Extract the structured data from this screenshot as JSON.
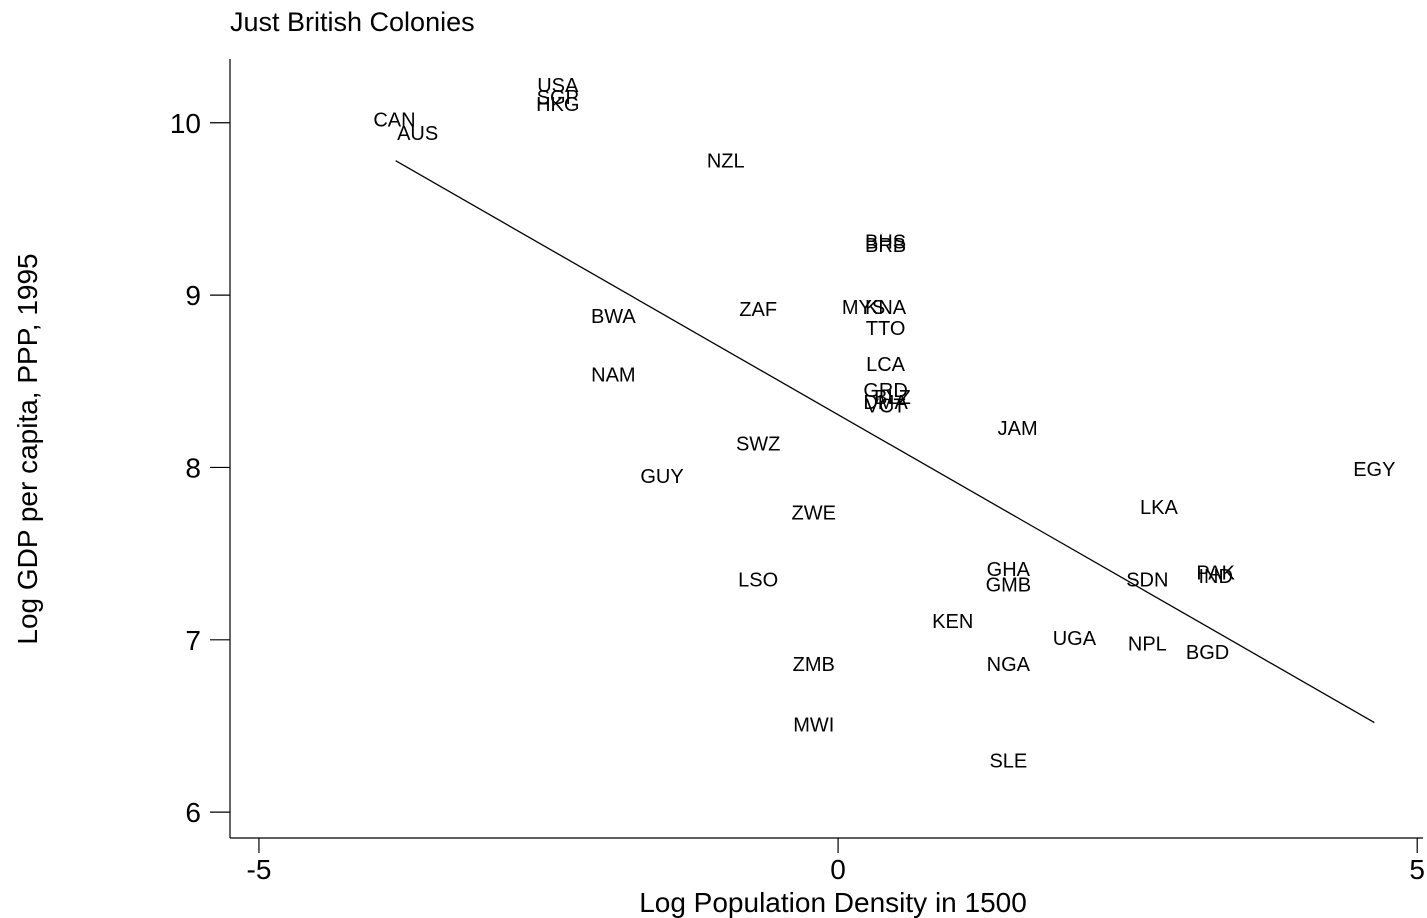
{
  "chart_data": {
    "type": "scatter",
    "title": "Just British Colonies",
    "xlabel": "Log Population Density in 1500",
    "ylabel": "Log GDP per capita, PPP, 1995",
    "xlim": [
      -5.25,
      5.05
    ],
    "ylim": [
      5.85,
      10.37
    ],
    "x_ticks": [
      -5,
      0,
      5
    ],
    "x_tick_labels": [
      "-5",
      "0",
      "5"
    ],
    "y_ticks": [
      6,
      7,
      8,
      9,
      10
    ],
    "y_tick_labels": [
      "6",
      "7",
      "8",
      "9",
      "10"
    ],
    "grid": false,
    "legend": "none",
    "marker": "country code labels",
    "fit_line": {
      "x": [
        -3.82,
        4.63
      ],
      "y": [
        9.78,
        6.52
      ]
    },
    "points": [
      {
        "label": "USA",
        "x": -2.42,
        "y": 10.22
      },
      {
        "label": "SGP",
        "x": -2.42,
        "y": 10.15
      },
      {
        "label": "HKG",
        "x": -2.42,
        "y": 10.11
      },
      {
        "label": "CAN",
        "x": -3.83,
        "y": 10.02
      },
      {
        "label": "AUS",
        "x": -3.63,
        "y": 9.94
      },
      {
        "label": "NZL",
        "x": -0.97,
        "y": 9.78
      },
      {
        "label": "BHS",
        "x": 0.41,
        "y": 9.31
      },
      {
        "label": "BRB",
        "x": 0.41,
        "y": 9.29
      },
      {
        "label": "BWA",
        "x": -1.94,
        "y": 8.88
      },
      {
        "label": "ZAF",
        "x": -0.69,
        "y": 8.92
      },
      {
        "label": "MYS",
        "x": 0.22,
        "y": 8.93
      },
      {
        "label": "KNA",
        "x": 0.41,
        "y": 8.93
      },
      {
        "label": "TTO",
        "x": 0.41,
        "y": 8.81
      },
      {
        "label": "NAM",
        "x": -1.94,
        "y": 8.54
      },
      {
        "label": "LCA",
        "x": 0.41,
        "y": 8.6
      },
      {
        "label": "GRD",
        "x": 0.41,
        "y": 8.45
      },
      {
        "label": "BLZ",
        "x": 0.47,
        "y": 8.41
      },
      {
        "label": "DMA",
        "x": 0.41,
        "y": 8.38
      },
      {
        "label": "VCT",
        "x": 0.41,
        "y": 8.36
      },
      {
        "label": "JAM",
        "x": 1.55,
        "y": 8.23
      },
      {
        "label": "SWZ",
        "x": -0.69,
        "y": 8.14
      },
      {
        "label": "GUY",
        "x": -1.52,
        "y": 7.95
      },
      {
        "label": "EGY",
        "x": 4.63,
        "y": 7.99
      },
      {
        "label": "LKA",
        "x": 2.77,
        "y": 7.77
      },
      {
        "label": "ZWE",
        "x": -0.21,
        "y": 7.74
      },
      {
        "label": "GHA",
        "x": 1.47,
        "y": 7.41
      },
      {
        "label": "GMB",
        "x": 1.47,
        "y": 7.32
      },
      {
        "label": "LSO",
        "x": -0.69,
        "y": 7.35
      },
      {
        "label": "PAK",
        "x": 3.26,
        "y": 7.39
      },
      {
        "label": "IND",
        "x": 3.26,
        "y": 7.37
      },
      {
        "label": "SDN",
        "x": 2.67,
        "y": 7.35
      },
      {
        "label": "KEN",
        "x": 0.99,
        "y": 7.11
      },
      {
        "label": "UGA",
        "x": 2.04,
        "y": 7.01
      },
      {
        "label": "NPL",
        "x": 2.67,
        "y": 6.98
      },
      {
        "label": "BGD",
        "x": 3.19,
        "y": 6.93
      },
      {
        "label": "ZMB",
        "x": -0.21,
        "y": 6.86
      },
      {
        "label": "NGA",
        "x": 1.47,
        "y": 6.86
      },
      {
        "label": "MWI",
        "x": -0.21,
        "y": 6.51
      },
      {
        "label": "SLE",
        "x": 1.47,
        "y": 6.3
      }
    ]
  }
}
